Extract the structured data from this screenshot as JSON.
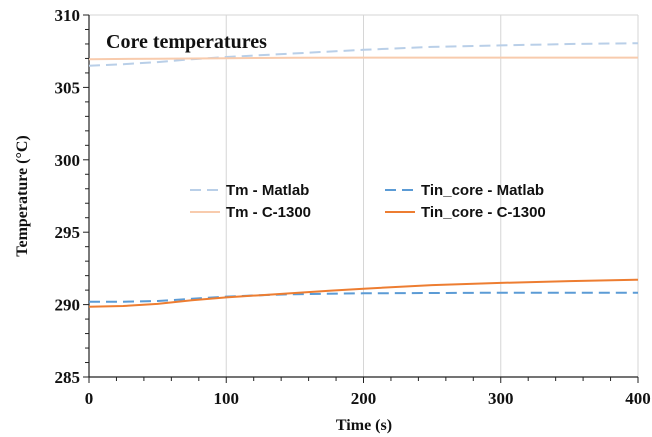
{
  "chart_data": {
    "type": "line",
    "title": "Core temperatures",
    "xlabel": "Time (s)",
    "ylabel": "Temperature (°C)",
    "xlim": [
      0,
      400
    ],
    "ylim": [
      285,
      310
    ],
    "xticks": [
      0,
      100,
      200,
      300,
      400
    ],
    "yticks": [
      285,
      290,
      295,
      300,
      305,
      310
    ],
    "x_tick_labels": [
      "0",
      "100",
      "200",
      "300",
      "400"
    ],
    "y_tick_labels": [
      "285",
      "290",
      "295",
      "300",
      "305",
      "310"
    ],
    "grid": "vertical",
    "legend_position": "center",
    "series": [
      {
        "name": "Tm - Matlab",
        "color": "#b9cfe8",
        "dash": "dashed",
        "x": [
          0,
          25,
          50,
          75,
          100,
          150,
          200,
          250,
          300,
          350,
          400
        ],
        "y": [
          306.5,
          306.6,
          306.75,
          306.95,
          307.1,
          307.35,
          307.6,
          307.8,
          307.9,
          308.0,
          308.05
        ]
      },
      {
        "name": "Tin_core - Matlab",
        "color": "#5b9bd5",
        "dash": "dashed",
        "x": [
          0,
          25,
          50,
          75,
          100,
          125,
          150,
          200,
          250,
          300,
          350,
          400
        ],
        "y": [
          290.2,
          290.2,
          290.25,
          290.4,
          290.55,
          290.65,
          290.72,
          290.78,
          290.8,
          290.82,
          290.82,
          290.82
        ]
      },
      {
        "name": "Tm - C-1300",
        "color": "#f8cbad",
        "dash": "solid",
        "x": [
          0,
          50,
          100,
          150,
          200,
          250,
          300,
          350,
          400
        ],
        "y": [
          306.95,
          306.98,
          307.02,
          307.05,
          307.06,
          307.06,
          307.06,
          307.06,
          307.06
        ]
      },
      {
        "name": "Tin_core - C-1300",
        "color": "#ed7d31",
        "dash": "solid",
        "x": [
          0,
          25,
          50,
          75,
          100,
          125,
          150,
          175,
          200,
          250,
          300,
          350,
          400
        ],
        "y": [
          289.85,
          289.9,
          290.05,
          290.3,
          290.5,
          290.65,
          290.8,
          290.95,
          291.1,
          291.35,
          291.5,
          291.62,
          291.72
        ]
      }
    ]
  }
}
